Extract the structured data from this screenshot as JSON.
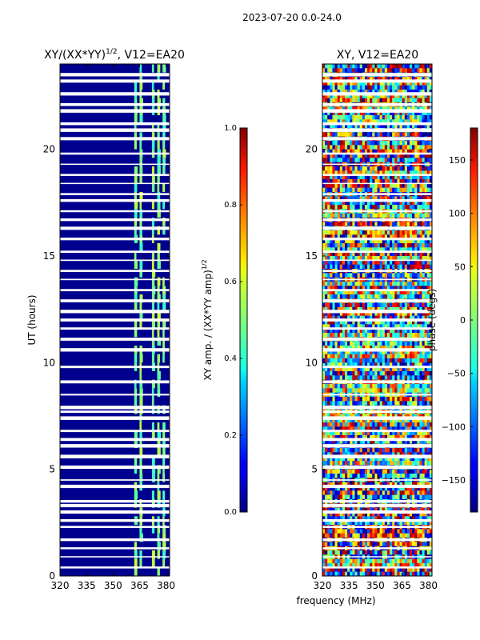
{
  "figure_title": "2023-07-20 0.0-24.0",
  "chart_data": [
    {
      "type": "heatmap",
      "title": "XY/(XX*YY)^1/2, V12=EA20",
      "title_base": "XY/(XX*YY)",
      "title_exp": "1/2",
      "title_suffix": ", V12=EA20",
      "xlabel": "frequency (MHz)",
      "ylabel": "UT (hours)",
      "xlim": [
        320,
        382
      ],
      "ylim": [
        0,
        24
      ],
      "xticks": [
        320,
        335,
        350,
        365,
        380
      ],
      "yticks": [
        0,
        5,
        10,
        15,
        20
      ],
      "colorbar": {
        "label": "XY amp. / (XX*YY amp)^1/2",
        "label_base": "XY amp. / (XX*YY amp)",
        "label_exp": "1/2",
        "range": [
          0.0,
          1.0
        ],
        "ticks": [
          "0.0",
          "0.2",
          "0.4",
          "0.6",
          "0.8",
          "1.0"
        ],
        "colormap": "jet"
      },
      "typical_value": 0.05,
      "bright_channels_mhz": [
        363,
        366,
        373,
        376,
        379
      ],
      "bright_value_range": [
        0.4,
        0.6
      ]
    },
    {
      "type": "heatmap",
      "title": "XY, V12=EA20",
      "xlabel": "frequency (MHz)",
      "ylabel": "",
      "xlim": [
        320,
        382
      ],
      "ylim": [
        0,
        24
      ],
      "xticks": [
        320,
        335,
        350,
        365,
        380
      ],
      "yticks": [
        0,
        5,
        10,
        15,
        20
      ],
      "colorbar": {
        "label": "phase (degs)",
        "range": [
          -180,
          180
        ],
        "ticks": [
          "150",
          "100",
          "50",
          "0",
          "−50",
          "−100",
          "−150"
        ],
        "tick_values": [
          150,
          100,
          50,
          0,
          -50,
          -100,
          -150
        ],
        "colormap": "jet"
      },
      "value_range": [
        -180,
        180
      ]
    }
  ],
  "flagged_ut_hours": [
    0.4,
    0.9,
    1.3,
    1.7,
    2.3,
    2.6,
    3.0,
    3.3,
    3.5,
    4.2,
    4.5,
    5.1,
    5.6,
    6.1,
    6.4,
    6.8,
    7.4,
    7.7,
    7.9,
    8.5,
    9.1,
    9.8,
    10.6,
    11.1,
    11.6,
    12.0,
    12.4,
    12.9,
    13.4,
    13.9,
    14.3,
    14.8,
    15.2,
    15.8,
    16.3,
    16.7,
    17.1,
    17.6,
    17.9,
    18.4,
    18.8,
    19.3,
    19.8,
    20.5,
    20.9,
    21.2,
    21.8,
    22.1,
    22.6,
    23.2,
    23.5
  ]
}
